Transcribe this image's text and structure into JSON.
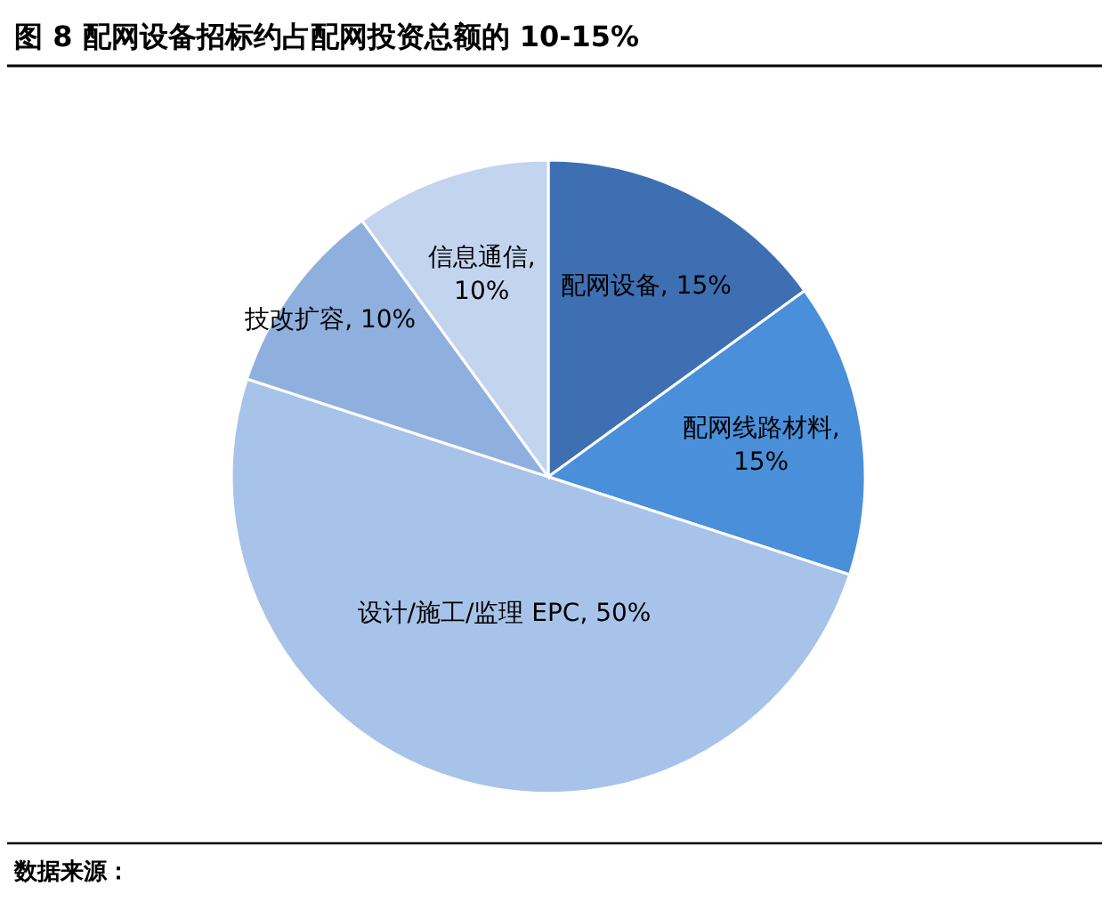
{
  "chart_data": {
    "type": "pie",
    "title": "图 8   配网设备招标约占配网投资总额的 10-15%",
    "categories": [
      "配网设备",
      "配网线路材料",
      "设计/施工/监理 EPC",
      "技改扩容",
      "信息通信"
    ],
    "values": [
      15,
      15,
      50,
      10,
      10
    ],
    "value_labels": [
      ", 15%",
      ",\n15%",
      ",  50%",
      ", 10%",
      ",\n10%"
    ],
    "data_labels": true,
    "legend": false,
    "colors": [
      "#3d6fb2",
      "#4a8fda",
      "#a8c3e9",
      "#8fb0df",
      "#c3d4ef"
    ],
    "annotations": [
      "数据来源："
    ]
  }
}
